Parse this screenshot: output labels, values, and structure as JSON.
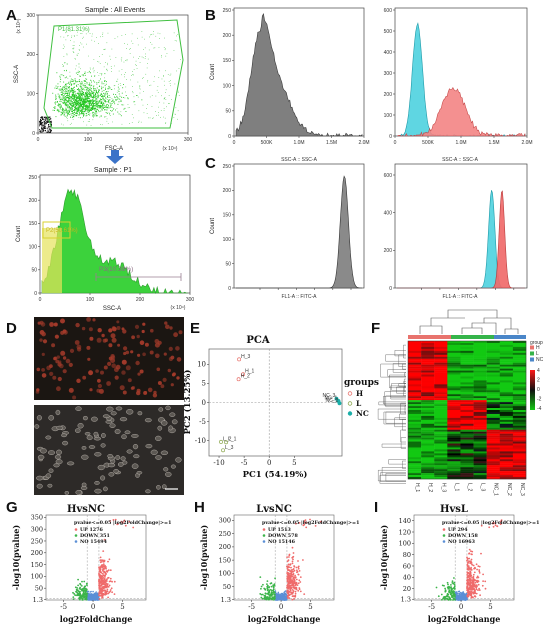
{
  "panels": {
    "A": {
      "label": "A",
      "top": {
        "title": "Sample : All Events",
        "gate": "P1(81.31%)",
        "xlabel": "FSC-A",
        "xscale": "(x 10⁴)",
        "ylabel": "SSC-A",
        "yscale": "(x 10⁴)",
        "xticks": [
          "0",
          "100",
          "200",
          "300"
        ],
        "yticks": [
          "0",
          "100",
          "200",
          "300"
        ]
      },
      "bottom": {
        "title": "Sample : P1",
        "gate2": "P2(50.61%)",
        "gate3": "P3(10.38%)",
        "xlabel": "SSC-A",
        "xscale": "(x 10⁴)",
        "ylabel": "Count",
        "xticks": [
          "0",
          "100",
          "200",
          "300"
        ],
        "yticks": [
          "0",
          "50",
          "100",
          "150",
          "200",
          "250"
        ]
      }
    },
    "B": {
      "label": "B",
      "left": {
        "ylabel": "Count",
        "xticks": [
          "0",
          "500K",
          "1.0M",
          "1.5M",
          "2.0M"
        ],
        "yticks": [
          "0",
          "50",
          "100",
          "150",
          "200",
          "250"
        ]
      },
      "right": {
        "ylabel": "",
        "xticks": [
          "0",
          "500K",
          "1.0M",
          "1.5M",
          "2.0M"
        ],
        "yticks": [
          "0",
          "100",
          "200",
          "300",
          "400",
          "500",
          "600"
        ]
      }
    },
    "C": {
      "label": "C",
      "left": {
        "title": "SSC-A :: SSC-A",
        "ylabel": "Count",
        "xlabel": "FL1-A :: FITC-A",
        "yticks": [
          "0",
          "50",
          "100",
          "150",
          "200",
          "250"
        ]
      },
      "right": {
        "title": "SSC-A :: SSC-A",
        "xlabel": "FL1-A :: FITC-A",
        "yticks": [
          "0",
          "200",
          "400",
          "600"
        ]
      }
    },
    "D": {
      "label": "D"
    },
    "E": {
      "label": "E",
      "title": "PCA",
      "xlabel": "PC1 (54.19%)",
      "ylabel": "PC2 (13.25%)",
      "xticks": [
        "-10",
        "-5",
        "0",
        "5"
      ],
      "yticks": [
        "-10",
        "-5",
        "0",
        "5",
        "10"
      ],
      "legend_title": "groups",
      "legend": [
        {
          "name": "H",
          "color": "#e8736d"
        },
        {
          "name": "L",
          "color": "#8da850"
        },
        {
          "name": "NC",
          "color": "#1aaea8"
        }
      ],
      "points": [
        {
          "label": "H_3",
          "x": -6.0,
          "y": 11.3,
          "g": "H"
        },
        {
          "label": "H_1",
          "x": -5.2,
          "y": 7.4,
          "g": "H"
        },
        {
          "label": "H_2",
          "x": -6.1,
          "y": 6.1,
          "g": "H"
        },
        {
          "label": "L_2",
          "x": -9.6,
          "y": -10.3,
          "g": "L"
        },
        {
          "label": "L_1",
          "x": -8.6,
          "y": -10.4,
          "g": "L"
        },
        {
          "label": "L_3",
          "x": -9.2,
          "y": -12.5,
          "g": "L"
        },
        {
          "label": "NC_3",
          "x": 13.4,
          "y": 1.0,
          "g": "NC"
        },
        {
          "label": "NC_1",
          "x": 13.8,
          "y": 0.4,
          "g": "NC"
        },
        {
          "label": "NC_2",
          "x": 14.0,
          "y": -0.2,
          "g": "NC"
        }
      ]
    },
    "F": {
      "label": "F",
      "legend_title": "group",
      "groups": [
        {
          "name": "H",
          "color": "#e8736d"
        },
        {
          "name": "L",
          "color": "#35b44a"
        },
        {
          "name": "NC",
          "color": "#4a86c8"
        }
      ],
      "scale": [
        "4",
        "2",
        "0",
        "-2",
        "-4"
      ],
      "columns": [
        "H_1",
        "H_2",
        "H_3",
        "L_1",
        "L_2",
        "L_3",
        "NC_1",
        "NC_2",
        "NC_3"
      ]
    },
    "G": {
      "label": "G",
      "title": "HvsNC",
      "legend_title": "pvalue<=0.05 |log2FoldChange|>=1",
      "up": "UP 1276",
      "down": "DOWN 351",
      "no": "NO 15494",
      "xlabel": "log2FoldChange",
      "ylabel": "-log10(pvalue)",
      "xticks": [
        "-5",
        "0",
        "5"
      ],
      "yticks": [
        "1.3",
        "50",
        "100",
        "150",
        "200",
        "250",
        "300",
        "350"
      ]
    },
    "H": {
      "label": "H",
      "title": "LvsNC",
      "legend_title": "pvalue<=0.05 |log2FoldChange|>=1",
      "up": "UP 1513",
      "down": "DOWN 578",
      "no": "NO 15146",
      "xlabel": "log2FoldChange",
      "ylabel": "-log10(pvalue)",
      "xticks": [
        "-5",
        "0",
        "5"
      ],
      "yticks": [
        "1.3",
        "50",
        "100",
        "150",
        "200",
        "250",
        "300"
      ]
    },
    "I": {
      "label": "I",
      "title": "HvsL",
      "legend_title": "pvalue<=0.05 |log2FoldChange|>=1",
      "up": "UP 294",
      "down": "DOWN 158",
      "no": "NO 16963",
      "xlabel": "log2FoldChange",
      "ylabel": "-log10(pvalue)",
      "xticks": [
        "-5",
        "0",
        "5"
      ],
      "yticks": [
        "1.3",
        "20",
        "40",
        "60",
        "80",
        "100",
        "120",
        "140"
      ]
    }
  },
  "colors": {
    "gate_green": "#3fbf3f",
    "dot_green": "#22c51f",
    "gray_hist": "#8a8a8a",
    "cyan": "#4fd3e0",
    "red": "#f07171",
    "volcano_up": "#ef6b6b",
    "volcano_down": "#3cb44a",
    "volcano_no": "#5b8fd6",
    "heat_red": "#ff1a1a",
    "heat_green": "#12c912"
  }
}
